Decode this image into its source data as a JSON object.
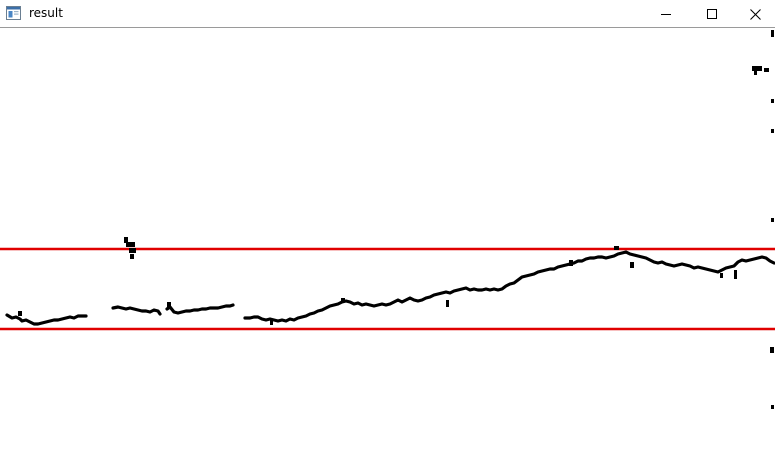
{
  "window": {
    "title": "result",
    "icons": {
      "app": "app-window-icon",
      "minimize": "minimize-icon",
      "maximize": "maximize-icon",
      "close": "close-icon"
    }
  },
  "image": {
    "background_color": "#ffffff",
    "trace_color": "#000000",
    "band_line_color": "#e00000",
    "band_lines": 2
  }
}
